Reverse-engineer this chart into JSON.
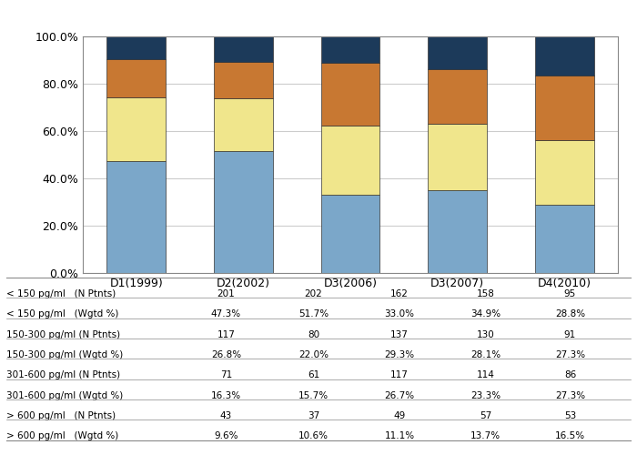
{
  "categories": [
    "D1(1999)",
    "D2(2002)",
    "D3(2006)",
    "D3(2007)",
    "D4(2010)"
  ],
  "series": [
    {
      "label": "< 150 pg/ml",
      "values": [
        47.3,
        51.7,
        33.0,
        34.9,
        28.8
      ],
      "color": "#7BA7C9"
    },
    {
      "label": "150-300 pg/ml",
      "values": [
        26.8,
        22.0,
        29.3,
        28.1,
        27.3
      ],
      "color": "#F0E68C"
    },
    {
      "label": "301-600 pg/ml",
      "values": [
        16.3,
        15.7,
        26.7,
        23.3,
        27.3
      ],
      "color": "#C87832"
    },
    {
      "label": "> 600 pg/ml",
      "values": [
        9.6,
        10.6,
        11.1,
        13.7,
        16.5
      ],
      "color": "#1C3A5A"
    }
  ],
  "table_rows": [
    {
      "label": "< 150 pg/ml   (N Ptnts)",
      "values": [
        "201",
        "202",
        "162",
        "158",
        "95"
      ]
    },
    {
      "label": "< 150 pg/ml   (Wgtd %)",
      "values": [
        "47.3%",
        "51.7%",
        "33.0%",
        "34.9%",
        "28.8%"
      ]
    },
    {
      "label": "150-300 pg/ml (N Ptnts)",
      "values": [
        "117",
        "80",
        "137",
        "130",
        "91"
      ]
    },
    {
      "label": "150-300 pg/ml (Wgtd %)",
      "values": [
        "26.8%",
        "22.0%",
        "29.3%",
        "28.1%",
        "27.3%"
      ]
    },
    {
      "label": "301-600 pg/ml (N Ptnts)",
      "values": [
        "71",
        "61",
        "117",
        "114",
        "86"
      ]
    },
    {
      "label": "301-600 pg/ml (Wgtd %)",
      "values": [
        "16.3%",
        "15.7%",
        "26.7%",
        "23.3%",
        "27.3%"
      ]
    },
    {
      "label": "> 600 pg/ml   (N Ptnts)",
      "values": [
        "43",
        "37",
        "49",
        "57",
        "53"
      ]
    },
    {
      "label": "> 600 pg/ml   (Wgtd %)",
      "values": [
        "9.6%",
        "10.6%",
        "11.1%",
        "13.7%",
        "16.5%"
      ]
    }
  ],
  "ylim": [
    0,
    100
  ],
  "yticks": [
    0,
    20,
    40,
    60,
    80,
    100
  ],
  "ytick_labels": [
    "0.0%",
    "20.0%",
    "40.0%",
    "60.0%",
    "80.0%",
    "100.0%"
  ],
  "bar_width": 0.55,
  "bgcolor": "#FFFFFF",
  "plot_bgcolor": "#FFFFFF",
  "grid_color": "#CCCCCC",
  "border_color": "#888888",
  "legend_colors": [
    "#7BA7C9",
    "#F0E68C",
    "#C87832",
    "#1C3A5A"
  ],
  "legend_labels": [
    "< 150 pg/ml",
    "150-300 pg/ml",
    "301-600 pg/ml",
    "> 600 pg/ml"
  ],
  "table_fontsize": 7.5,
  "axis_fontsize": 9,
  "legend_fontsize": 8.5
}
